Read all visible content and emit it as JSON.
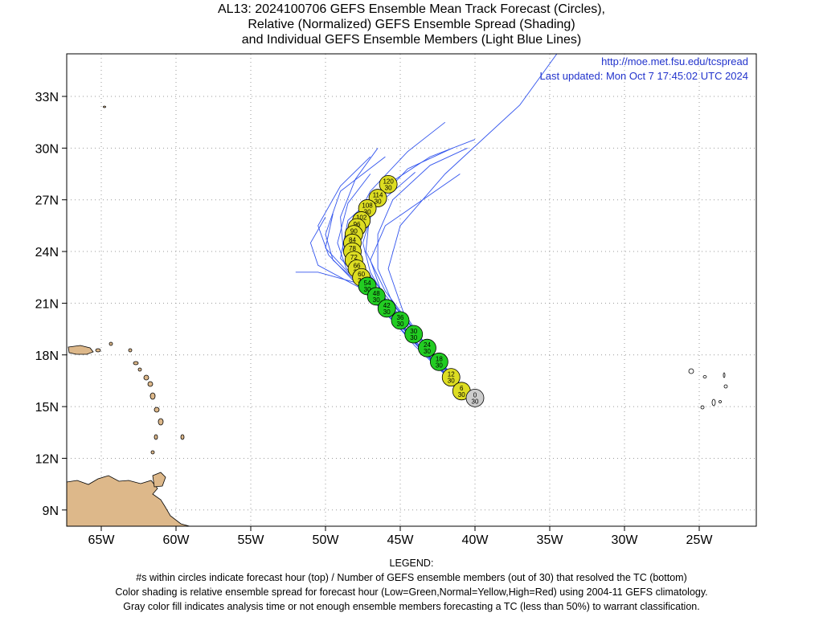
{
  "title": {
    "line1": "AL13: 2024100706 GEFS Ensemble Mean Track Forecast (Circles),",
    "line2": "Relative (Normalized) GEFS Ensemble Spread (Shading)",
    "line3": "and Individual GEFS Ensemble Members (Light Blue Lines)"
  },
  "credit": {
    "url": "http://moe.met.fsu.edu/tcspread",
    "updated": "Last updated: Mon Oct 7 17:45:02 UTC 2024"
  },
  "axes": {
    "lon_labels": [
      "65W",
      "60W",
      "55W",
      "50W",
      "45W",
      "40W",
      "35W",
      "30W",
      "25W"
    ],
    "lat_labels": [
      "33N",
      "30N",
      "27N",
      "24N",
      "21N",
      "18N",
      "15N",
      "12N",
      "9N"
    ],
    "lon_range": [
      -67.5,
      -20.5
    ],
    "lat_range": [
      8,
      35.5
    ],
    "grid": "dotted"
  },
  "legend": {
    "heading": "LEGEND:",
    "line1": "#s within circles indicate forecast hour (top) / Number of GEFS ensemble members (out of 30) that resolved the TC (bottom)",
    "line2": "Color shading is relative ensemble spread for forecast hour (Low=Green,Normal=Yellow,High=Red) using 2004-11 GEFS climatology.",
    "line3": "Gray color fill indicates analysis time or not enough ensemble members forecasting a TC (less than 50%) to warrant classification."
  },
  "colors": {
    "low": "#22cc22",
    "normal": "#dddd22",
    "high": "#dd2222",
    "analysis": "#cccccc",
    "member_line": "#3355ee",
    "land": "#ddb88a"
  },
  "chart_data": {
    "type": "scatter",
    "track": [
      {
        "hour": "0",
        "members": "30",
        "lon": -40.0,
        "lat": 15.5,
        "spread": "analysis"
      },
      {
        "hour": "6",
        "members": "30",
        "lon": -40.9,
        "lat": 15.9,
        "spread": "normal"
      },
      {
        "hour": "12",
        "members": "30",
        "lon": -41.6,
        "lat": 16.7,
        "spread": "normal"
      },
      {
        "hour": "18",
        "members": "30",
        "lon": -42.4,
        "lat": 17.6,
        "spread": "low"
      },
      {
        "hour": "24",
        "members": "30",
        "lon": -43.2,
        "lat": 18.4,
        "spread": "low"
      },
      {
        "hour": "30",
        "members": "30",
        "lon": -44.1,
        "lat": 19.2,
        "spread": "low"
      },
      {
        "hour": "36",
        "members": "30",
        "lon": -45.0,
        "lat": 20.0,
        "spread": "low"
      },
      {
        "hour": "42",
        "members": "30",
        "lon": -45.9,
        "lat": 20.7,
        "spread": "low"
      },
      {
        "hour": "48",
        "members": "30",
        "lon": -46.6,
        "lat": 21.4,
        "spread": "low"
      },
      {
        "hour": "54",
        "members": "30",
        "lon": -47.2,
        "lat": 22.0,
        "spread": "low"
      },
      {
        "hour": "60",
        "members": "30",
        "lon": -47.6,
        "lat": 22.5,
        "spread": "normal"
      },
      {
        "hour": "66",
        "members": "30",
        "lon": -47.9,
        "lat": 23.0,
        "spread": "normal"
      },
      {
        "hour": "72",
        "members": "30",
        "lon": -48.1,
        "lat": 23.5,
        "spread": "normal"
      },
      {
        "hour": "78",
        "members": "30",
        "lon": -48.2,
        "lat": 24.0,
        "spread": "normal"
      },
      {
        "hour": "84",
        "members": "30",
        "lon": -48.2,
        "lat": 24.5,
        "spread": "normal"
      },
      {
        "hour": "90",
        "members": "30",
        "lon": -48.1,
        "lat": 25.0,
        "spread": "normal"
      },
      {
        "hour": "96",
        "members": "30",
        "lon": -47.9,
        "lat": 25.4,
        "spread": "normal"
      },
      {
        "hour": "102",
        "members": "30",
        "lon": -47.6,
        "lat": 25.8,
        "spread": "normal"
      },
      {
        "hour": "108",
        "members": "30",
        "lon": -47.2,
        "lat": 26.5,
        "spread": "normal"
      },
      {
        "hour": "114",
        "members": "30",
        "lon": -46.5,
        "lat": 27.1,
        "spread": "normal"
      },
      {
        "hour": "120",
        "members": "30",
        "lon": -45.8,
        "lat": 27.9,
        "spread": "normal"
      }
    ],
    "members": [
      [
        [
          -40.4,
          15.7
        ],
        [
          -43.5,
          18.8
        ],
        [
          -46.5,
          22.0
        ],
        [
          -48.0,
          23.8
        ],
        [
          -48.2,
          25.5
        ],
        [
          -47.0,
          27.5
        ],
        [
          -44.5,
          29.8
        ],
        [
          -42.0,
          31.5
        ]
      ],
      [
        [
          -40.5,
          15.6
        ],
        [
          -44.0,
          18.5
        ],
        [
          -47.0,
          21.5
        ],
        [
          -49.5,
          23.5
        ],
        [
          -50.0,
          25.0
        ],
        [
          -49.0,
          27.5
        ],
        [
          -46.0,
          29.5
        ]
      ],
      [
        [
          -40.6,
          15.7
        ],
        [
          -44.2,
          19.0
        ],
        [
          -47.5,
          21.8
        ],
        [
          -50.5,
          23.2
        ],
        [
          -51.0,
          24.5
        ],
        [
          -50.0,
          26.0
        ]
      ],
      [
        [
          -40.6,
          15.6
        ],
        [
          -44.5,
          19.1
        ],
        [
          -48.0,
          22.2
        ],
        [
          -50.5,
          22.8
        ],
        [
          -52.0,
          22.8
        ]
      ],
      [
        [
          -40.5,
          15.6
        ],
        [
          -43.8,
          18.5
        ],
        [
          -46.2,
          21.5
        ],
        [
          -47.0,
          23.5
        ],
        [
          -46.0,
          25.5
        ],
        [
          -43.5,
          27.0
        ],
        [
          -41.0,
          28.5
        ]
      ],
      [
        [
          -40.4,
          15.7
        ],
        [
          -43.2,
          18.5
        ],
        [
          -45.5,
          21.0
        ],
        [
          -46.5,
          23.0
        ],
        [
          -46.5,
          25.0
        ],
        [
          -45.5,
          27.0
        ],
        [
          -43.0,
          29.0
        ],
        [
          -40.5,
          30.0
        ]
      ],
      [
        [
          -40.5,
          15.6
        ],
        [
          -43.0,
          18.2
        ],
        [
          -44.8,
          20.5
        ],
        [
          -45.8,
          23.0
        ],
        [
          -45.0,
          25.5
        ],
        [
          -42.0,
          28.5
        ],
        [
          -37.0,
          32.5
        ],
        [
          -34.5,
          35.5
        ]
      ],
      [
        [
          -40.5,
          15.7
        ],
        [
          -43.7,
          18.9
        ],
        [
          -46.8,
          22.1
        ],
        [
          -48.8,
          24.0
        ],
        [
          -49.0,
          26.0
        ],
        [
          -48.0,
          28.2
        ],
        [
          -46.5,
          30.0
        ]
      ],
      [
        [
          -40.6,
          15.6
        ],
        [
          -44.0,
          18.8
        ],
        [
          -47.2,
          21.9
        ],
        [
          -49.0,
          23.6
        ],
        [
          -48.5,
          25.8
        ],
        [
          -46.0,
          27.8
        ],
        [
          -43.0,
          29.5
        ],
        [
          -40.0,
          30.5
        ]
      ],
      [
        [
          -40.5,
          15.6
        ],
        [
          -43.6,
          18.4
        ],
        [
          -46.5,
          21.4
        ],
        [
          -48.5,
          22.8
        ],
        [
          -50.0,
          24.2
        ],
        [
          -49.5,
          26.2
        ]
      ],
      [
        [
          -40.5,
          15.7
        ],
        [
          -44.4,
          19.0
        ],
        [
          -47.8,
          22.0
        ],
        [
          -49.8,
          23.8
        ],
        [
          -50.5,
          25.5
        ],
        [
          -49.0,
          27.8
        ],
        [
          -47.0,
          29.5
        ]
      ],
      [
        [
          -40.4,
          15.6
        ],
        [
          -43.4,
          18.7
        ],
        [
          -46.0,
          21.7
        ],
        [
          -47.3,
          24.0
        ],
        [
          -47.0,
          26.5
        ],
        [
          -44.5,
          28.8
        ],
        [
          -41.5,
          30.0
        ]
      ],
      [
        [
          -40.5,
          15.6
        ],
        [
          -43.9,
          18.6
        ],
        [
          -46.9,
          21.6
        ],
        [
          -48.6,
          23.0
        ],
        [
          -49.2,
          24.5
        ],
        [
          -48.5,
          26.8
        ],
        [
          -47.0,
          28.5
        ]
      ],
      [
        [
          -40.5,
          15.7
        ],
        [
          -43.3,
          18.3
        ],
        [
          -45.8,
          21.0
        ],
        [
          -47.0,
          22.8
        ],
        [
          -47.5,
          24.5
        ],
        [
          -46.8,
          26.5
        ],
        [
          -44.0,
          28.6
        ]
      ]
    ]
  }
}
